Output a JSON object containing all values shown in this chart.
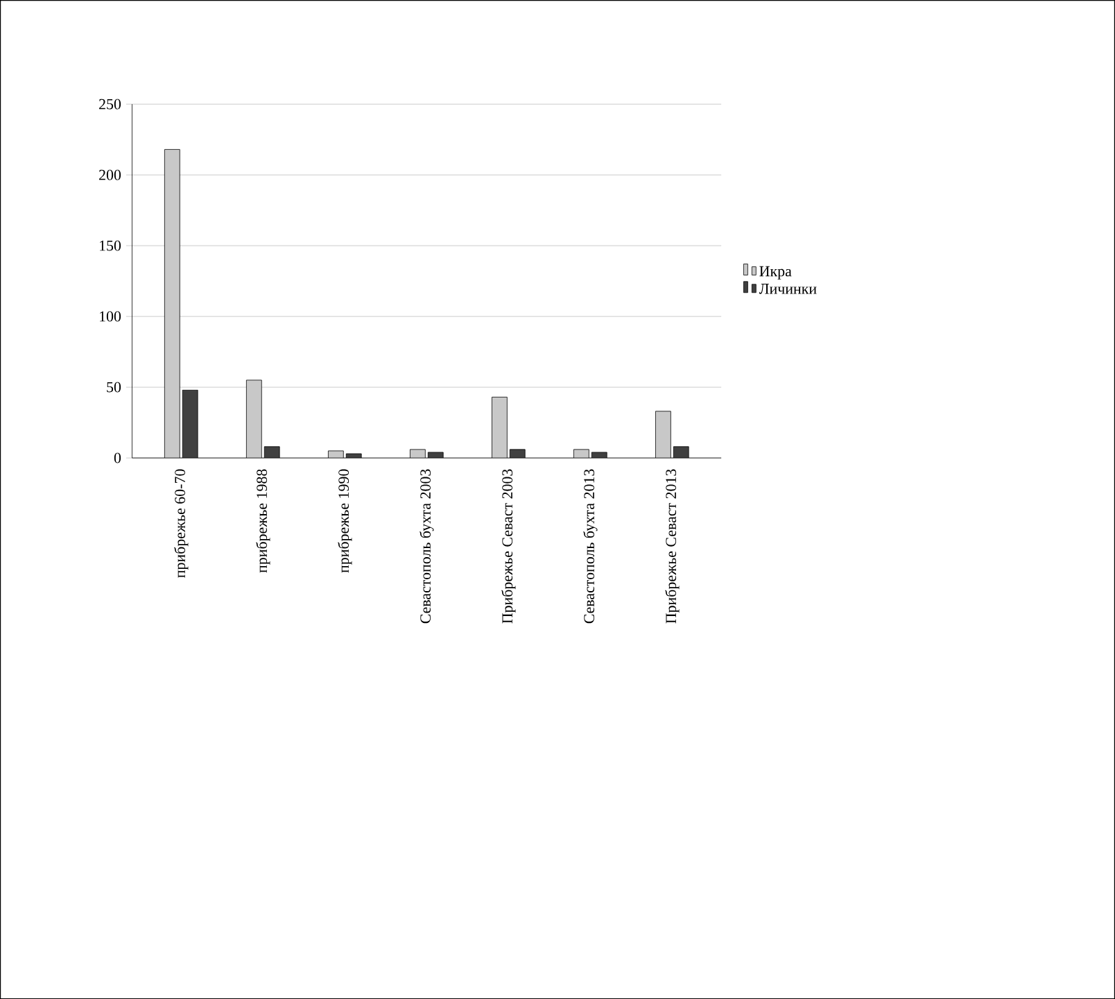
{
  "chart_data": {
    "type": "bar",
    "categories": [
      "прибрежье 60-70",
      "прибрежье 1988",
      "прибрежье 1990",
      "Севастополь бухта 2003",
      "Прибрежье Севаст 2003",
      "Севастополь бухта 2013",
      "Прибрежье Севаст 2013"
    ],
    "series": [
      {
        "name": "Икра",
        "color": "#c8c8c8",
        "values": [
          218,
          55,
          5,
          6,
          43,
          6,
          33
        ]
      },
      {
        "name": "Личинки",
        "color": "#404040",
        "values": [
          48,
          8,
          3,
          4,
          6,
          4,
          8
        ]
      }
    ],
    "ylim": [
      0,
      250
    ],
    "yticks": [
      0,
      50,
      100,
      150,
      200,
      250
    ],
    "grid": "y",
    "legend": "right"
  }
}
